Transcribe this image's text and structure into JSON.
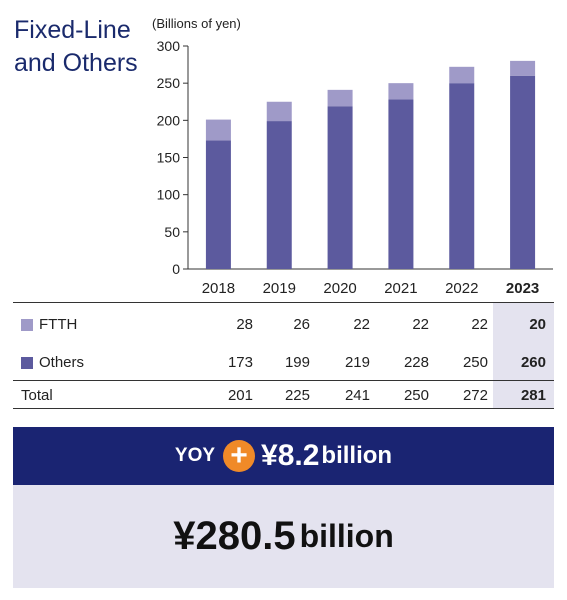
{
  "title": "Fixed-Line and Others",
  "unit_label": "(Billions of yen)",
  "colors": {
    "ftth": "#9f9ac8",
    "others": "#5c5a9e",
    "navy": "#1a2472",
    "orange": "#f08a28",
    "highlight": "#e4e3ef"
  },
  "chart_data": {
    "type": "bar",
    "stacked": true,
    "categories": [
      "2018",
      "2019",
      "2020",
      "2021",
      "2022",
      "2023"
    ],
    "series": [
      {
        "name": "Others",
        "values": [
          173,
          199,
          219,
          228,
          250,
          260
        ]
      },
      {
        "name": "FTTH",
        "values": [
          28,
          26,
          22,
          22,
          22,
          20
        ]
      }
    ],
    "ylim": [
      0,
      300
    ],
    "yticks": [
      "0",
      "50",
      "100",
      "150",
      "200",
      "250",
      "300"
    ],
    "ylabel": "(Billions of yen)",
    "grid": false
  },
  "table": {
    "rows": [
      {
        "label": "FTTH",
        "values": [
          "28",
          "26",
          "22",
          "22",
          "22",
          "20"
        ]
      },
      {
        "label": "Others",
        "values": [
          "173",
          "199",
          "219",
          "228",
          "250",
          "260"
        ]
      },
      {
        "label": "Total",
        "values": [
          "201",
          "225",
          "241",
          "250",
          "272",
          "281"
        ]
      }
    ]
  },
  "yoy": {
    "label": "YOY",
    "sign": "+",
    "amount": "¥8.2",
    "unit": "billion"
  },
  "total_box": {
    "amount": "¥280.5",
    "unit": "billion"
  }
}
